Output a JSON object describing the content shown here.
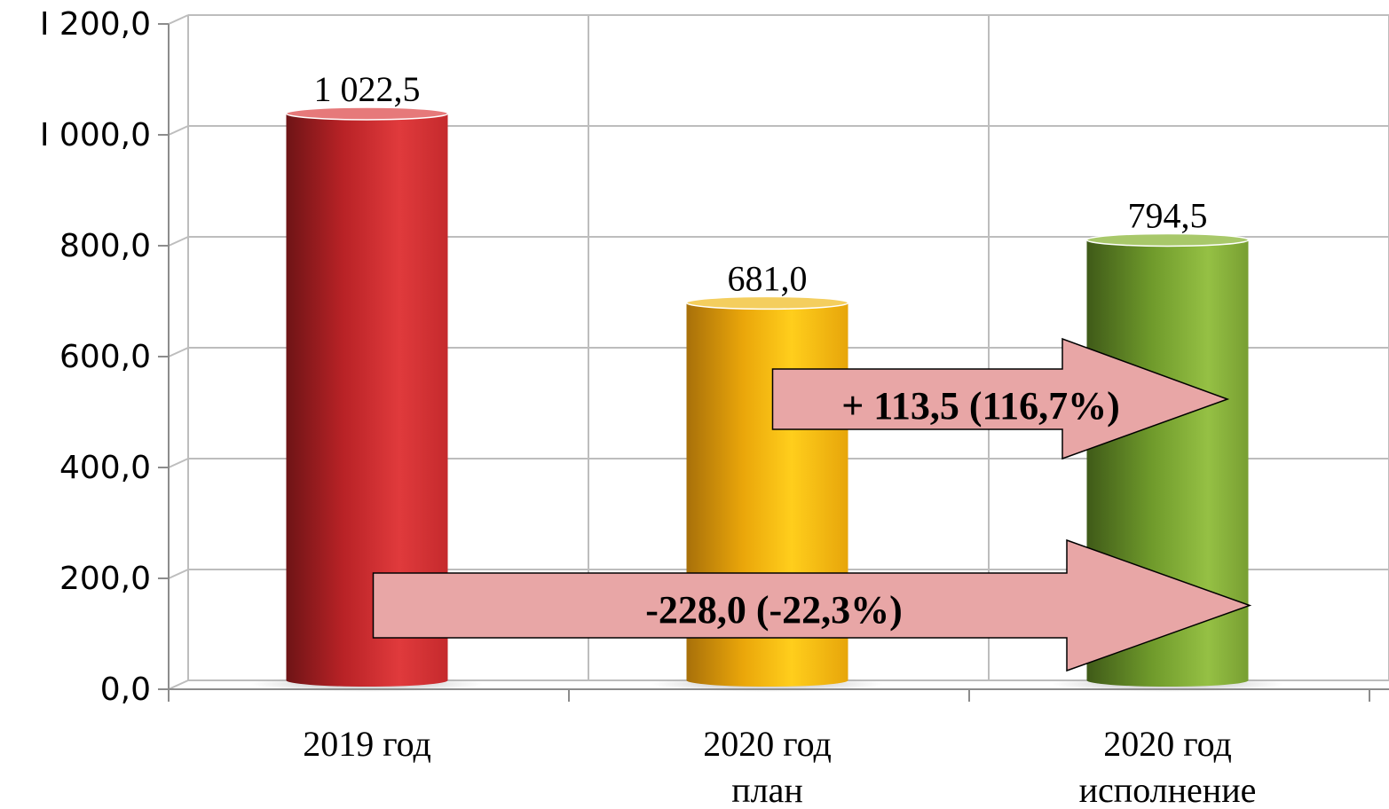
{
  "chart_data": {
    "type": "bar",
    "categories": [
      [
        "2019 год"
      ],
      [
        "2020 год",
        "план"
      ],
      [
        "2020 год",
        "исполнение"
      ]
    ],
    "values": [
      1022.5,
      681.0,
      794.5
    ],
    "data_labels": [
      "1 022,5",
      "681,0",
      "794,5"
    ],
    "colors": [
      "#d42a2e",
      "#f2b40a",
      "#7fa534"
    ],
    "ylim": [
      0,
      1200
    ],
    "yticks": [
      0,
      200,
      400,
      600,
      800,
      1000,
      1200
    ],
    "ytick_labels": [
      "0,0",
      "200,0",
      "400,0",
      "600,0",
      "800,0",
      "I 000,0",
      "I 200,0"
    ],
    "grid": true,
    "annotations": [
      {
        "text": "+ 113,5 (116,7%)",
        "from_category": 1,
        "to_category": 2,
        "fill": "#e8a6a6"
      },
      {
        "text": "-228,0  (-22,3%)",
        "from_category": 0,
        "to_category": 2,
        "fill": "#e8a6a6"
      }
    ]
  }
}
